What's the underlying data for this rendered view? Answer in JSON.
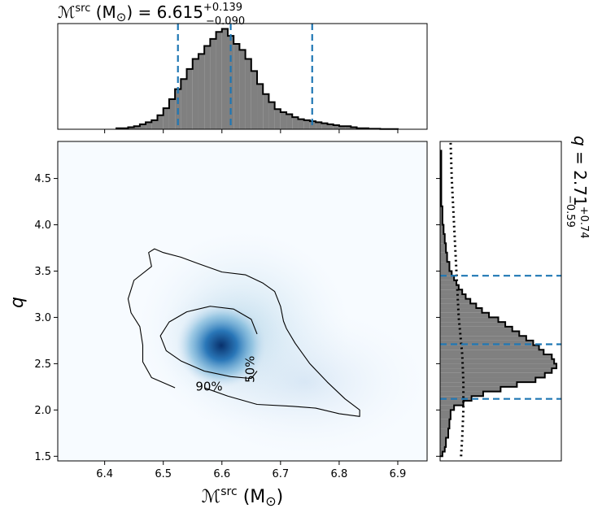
{
  "figure": {
    "top_title": {
      "prefix": "ℳ",
      "sup": "src",
      "unit": " (M",
      "sun": "⊙",
      "close": ")",
      "eq": " = 6.615",
      "plus": "+0.139",
      "minus": "−0.090"
    },
    "right_title": {
      "var": "q",
      "eq": " = 2.71",
      "plus": "+0.74",
      "minus": "−0.59"
    },
    "xlabel": {
      "prefix": "ℳ",
      "sup": "src",
      "unit": " (M",
      "sun": "⊙",
      "close": ")"
    },
    "ylabel": "q"
  },
  "chart_data": [
    {
      "panel": "joint-2d-density",
      "type": "heatmap",
      "x_range": [
        6.32,
        6.95
      ],
      "y_range": [
        1.45,
        4.9
      ],
      "x_ticks": [
        "6.4",
        "6.5",
        "6.6",
        "6.7",
        "6.8",
        "6.9"
      ],
      "y_ticks": [
        "1.5",
        "2.0",
        "2.5",
        "3.0",
        "3.5",
        "4.0",
        "4.5"
      ],
      "peak": {
        "x": 6.6,
        "y": 2.58
      },
      "colormap": "Blues",
      "contours": [
        {
          "label": "50%",
          "label_pos": [
            6.655,
            2.44
          ],
          "points": [
            [
              6.66,
              2.82
            ],
            [
              6.65,
              2.98
            ],
            [
              6.62,
              3.09
            ],
            [
              6.58,
              3.12
            ],
            [
              6.54,
              3.06
            ],
            [
              6.51,
              2.95
            ],
            [
              6.495,
              2.8
            ],
            [
              6.505,
              2.64
            ],
            [
              6.53,
              2.53
            ],
            [
              6.57,
              2.42
            ],
            [
              6.615,
              2.36
            ],
            [
              6.65,
              2.34
            ],
            [
              6.66,
              2.42
            ]
          ]
        },
        {
          "label": "90%",
          "label_pos": [
            6.555,
            2.21
          ],
          "points": [
            [
              6.57,
              2.24
            ],
            [
              6.61,
              2.15
            ],
            [
              6.66,
              2.06
            ],
            [
              6.72,
              2.04
            ],
            [
              6.76,
              2.02
            ],
            [
              6.8,
              1.96
            ],
            [
              6.835,
              1.93
            ],
            [
              6.835,
              2.0
            ],
            [
              6.81,
              2.12
            ],
            [
              6.78,
              2.3
            ],
            [
              6.75,
              2.5
            ],
            [
              6.725,
              2.72
            ],
            [
              6.71,
              2.88
            ],
            [
              6.705,
              2.96
            ],
            [
              6.7,
              3.12
            ],
            [
              6.69,
              3.28
            ],
            [
              6.67,
              3.37
            ],
            [
              6.64,
              3.46
            ],
            [
              6.6,
              3.49
            ],
            [
              6.56,
              3.58
            ],
            [
              6.53,
              3.65
            ],
            [
              6.5,
              3.7
            ],
            [
              6.485,
              3.74
            ],
            [
              6.475,
              3.7
            ],
            [
              6.48,
              3.55
            ],
            [
              6.45,
              3.4
            ],
            [
              6.44,
              3.2
            ],
            [
              6.445,
              3.05
            ],
            [
              6.46,
              2.9
            ],
            [
              6.465,
              2.7
            ],
            [
              6.465,
              2.52
            ],
            [
              6.48,
              2.35
            ],
            [
              6.52,
              2.24
            ]
          ]
        }
      ]
    },
    {
      "panel": "marginal-chirp-mass",
      "type": "bar",
      "x_range": [
        6.32,
        6.95
      ],
      "bin_edges": [
        6.42,
        6.44,
        6.45,
        6.46,
        6.47,
        6.48,
        6.49,
        6.5,
        6.51,
        6.52,
        6.53,
        6.54,
        6.55,
        6.56,
        6.57,
        6.58,
        6.59,
        6.6,
        6.61,
        6.62,
        6.63,
        6.64,
        6.65,
        6.66,
        6.67,
        6.68,
        6.69,
        6.7,
        6.71,
        6.72,
        6.73,
        6.74,
        6.75,
        6.76,
        6.77,
        6.78,
        6.79,
        6.8,
        6.81,
        6.82,
        6.83,
        6.85,
        6.87,
        6.9
      ],
      "values": [
        0.01,
        0.02,
        0.03,
        0.05,
        0.07,
        0.09,
        0.14,
        0.21,
        0.3,
        0.4,
        0.5,
        0.6,
        0.7,
        0.75,
        0.83,
        0.9,
        0.97,
        1.0,
        0.93,
        0.85,
        0.79,
        0.7,
        0.58,
        0.45,
        0.35,
        0.27,
        0.2,
        0.17,
        0.15,
        0.12,
        0.1,
        0.09,
        0.08,
        0.07,
        0.06,
        0.05,
        0.04,
        0.03,
        0.03,
        0.02,
        0.01,
        0.005,
        0.002
      ],
      "quantile_lines": [
        6.525,
        6.615,
        6.754
      ]
    },
    {
      "panel": "marginal-mass-ratio",
      "type": "bar",
      "orientation": "horizontal",
      "y_range": [
        1.45,
        4.9
      ],
      "bin_edges": [
        1.5,
        1.55,
        1.6,
        1.7,
        1.8,
        1.9,
        2.0,
        2.05,
        2.1,
        2.15,
        2.2,
        2.25,
        2.3,
        2.35,
        2.4,
        2.45,
        2.5,
        2.55,
        2.6,
        2.65,
        2.7,
        2.75,
        2.8,
        2.85,
        2.9,
        2.95,
        3.0,
        3.05,
        3.1,
        3.15,
        3.2,
        3.25,
        3.3,
        3.35,
        3.4,
        3.45,
        3.5,
        3.6,
        3.7,
        3.8,
        3.9,
        4.0,
        4.2,
        4.8
      ],
      "values": [
        0.02,
        0.04,
        0.05,
        0.07,
        0.08,
        0.09,
        0.12,
        0.2,
        0.27,
        0.37,
        0.52,
        0.66,
        0.82,
        0.9,
        0.96,
        1.0,
        0.98,
        0.96,
        0.89,
        0.85,
        0.8,
        0.74,
        0.68,
        0.62,
        0.56,
        0.5,
        0.42,
        0.36,
        0.31,
        0.26,
        0.22,
        0.19,
        0.16,
        0.14,
        0.12,
        0.1,
        0.08,
        0.06,
        0.05,
        0.04,
        0.03,
        0.02,
        0.01
      ],
      "quantile_lines": [
        2.12,
        2.71,
        3.45
      ],
      "prior_curve": [
        [
          1.5,
          0.18
        ],
        [
          1.7,
          0.19
        ],
        [
          2.0,
          0.2
        ],
        [
          2.3,
          0.2
        ],
        [
          2.6,
          0.19
        ],
        [
          3.0,
          0.16
        ],
        [
          3.5,
          0.14
        ],
        [
          4.0,
          0.12
        ],
        [
          4.5,
          0.1
        ],
        [
          4.9,
          0.09
        ]
      ]
    }
  ]
}
